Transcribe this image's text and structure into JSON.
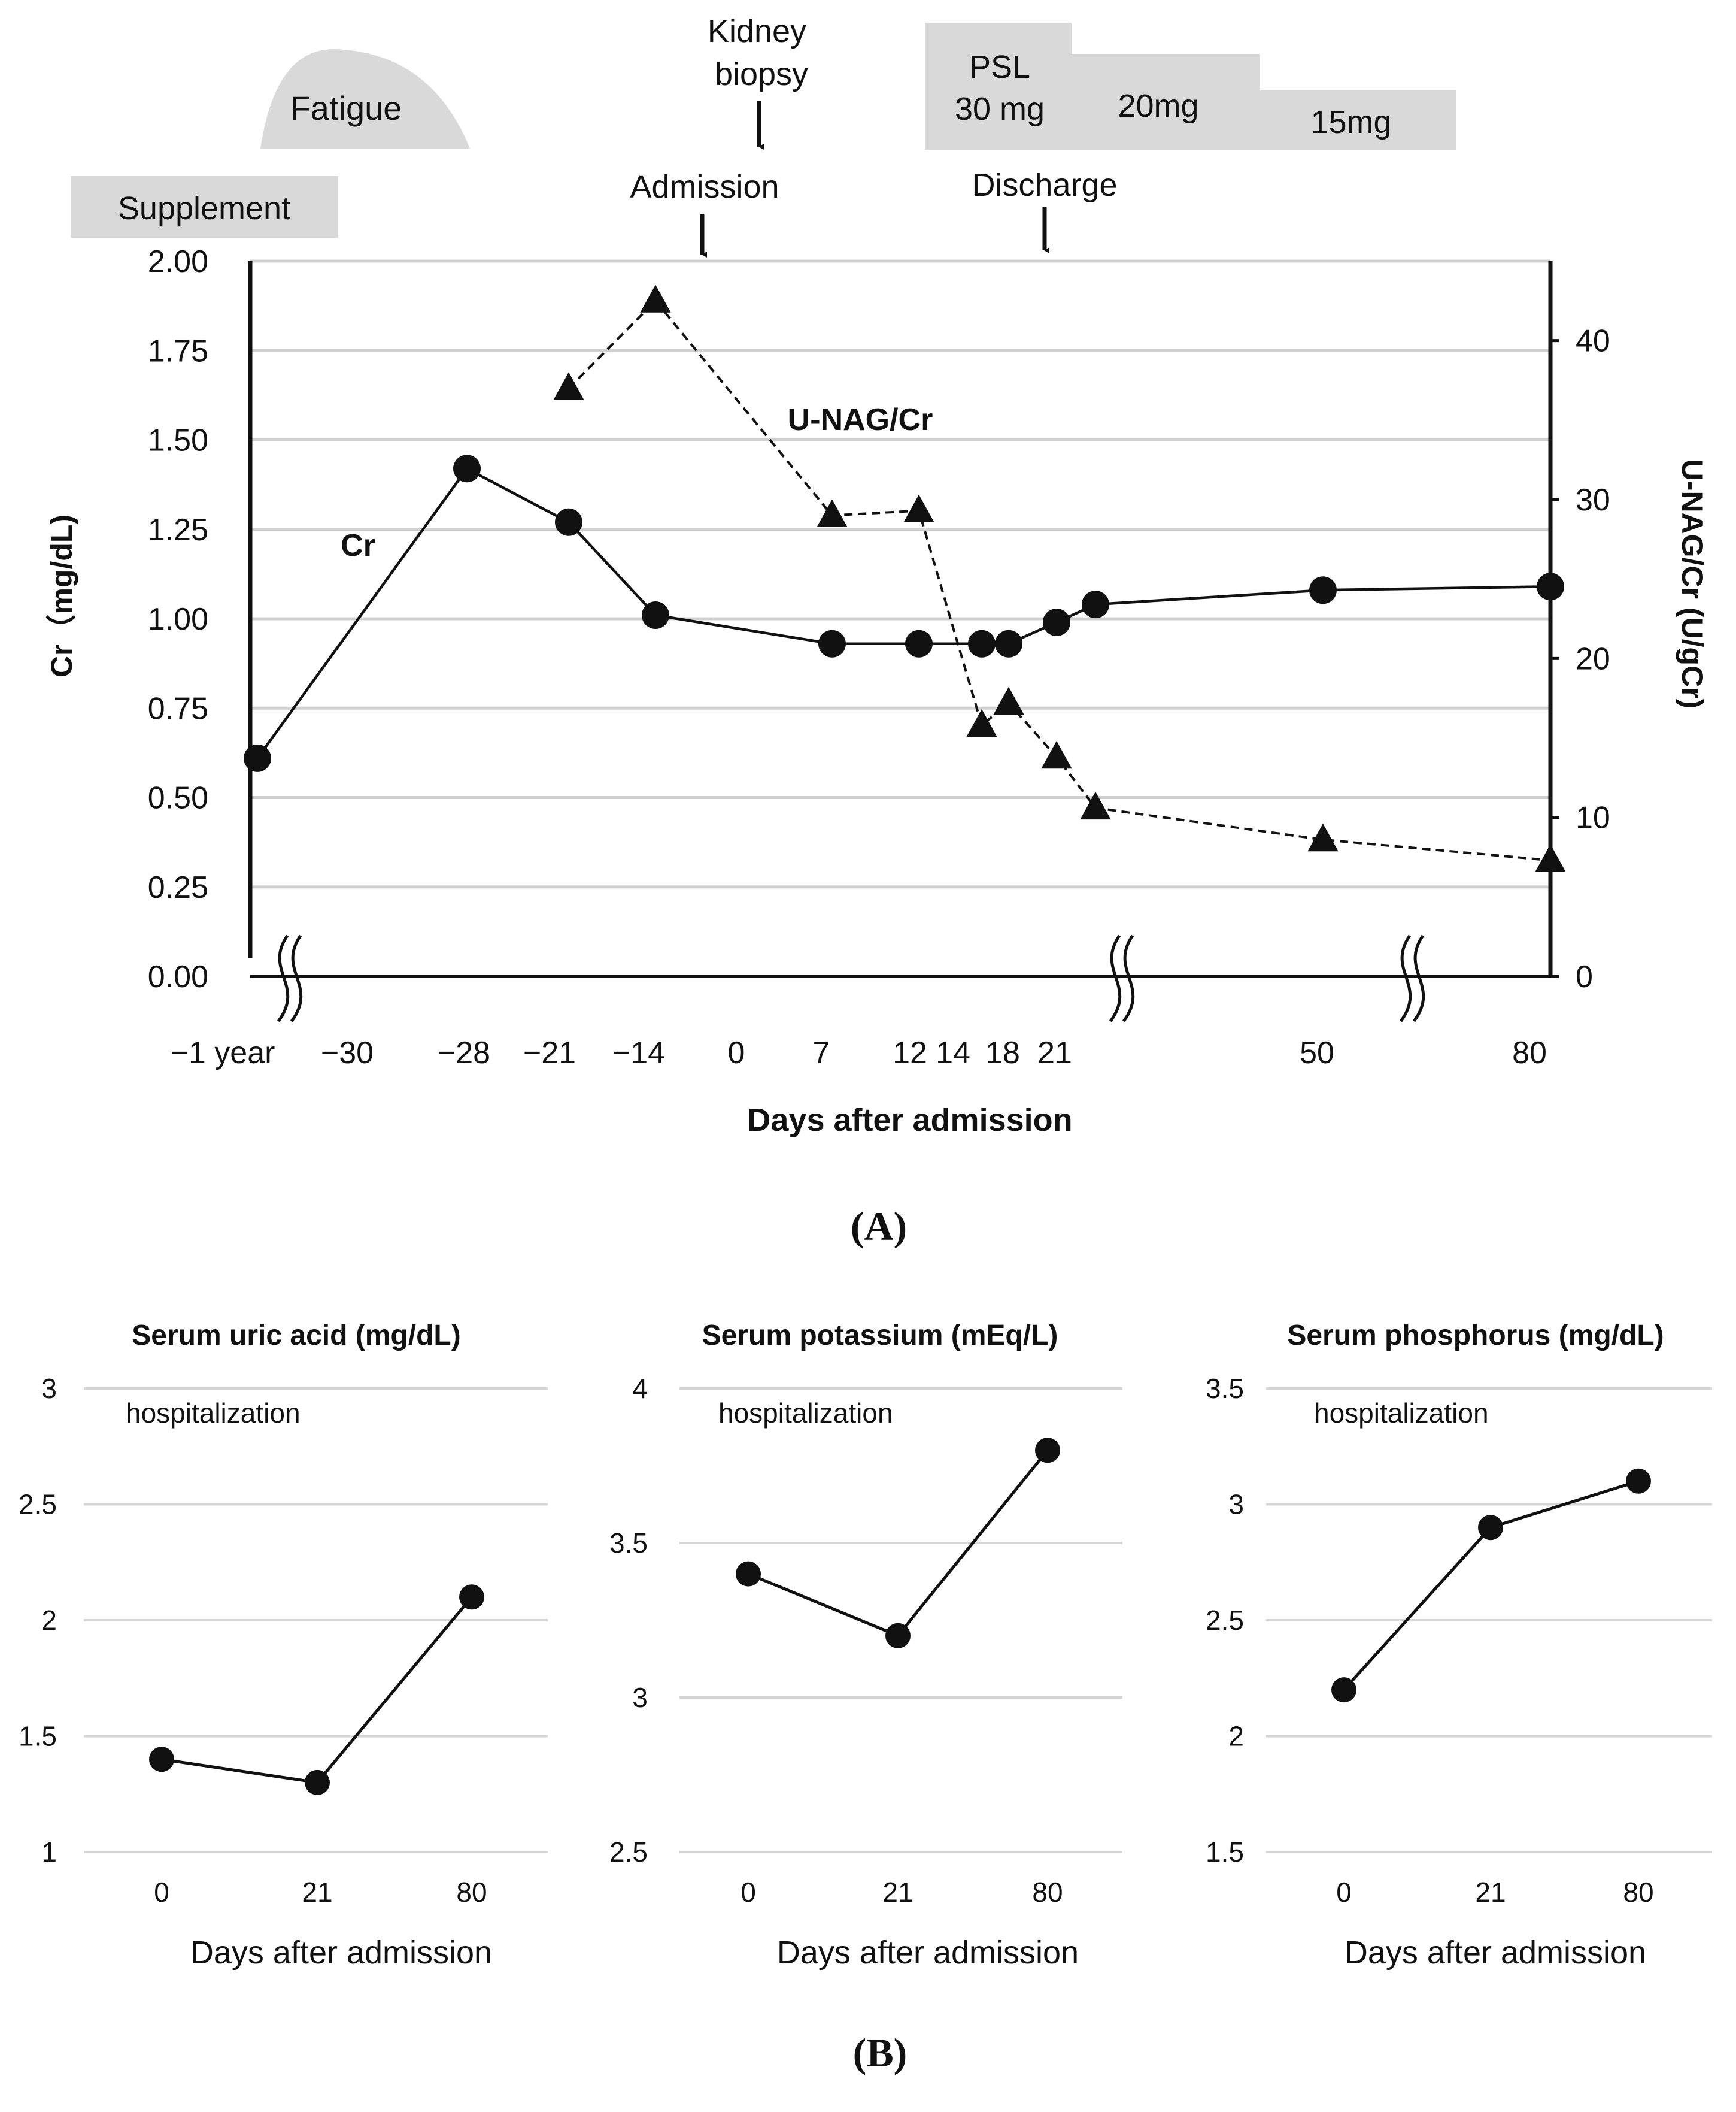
{
  "chart_data": [
    {
      "panel": "(A)",
      "type": "line",
      "xlabel": "Days after admission",
      "x_categories": [
        "−1 year",
        "−30",
        "−28",
        "−21",
        "−14",
        "0",
        "7",
        "12",
        "14",
        "18",
        "21",
        "50",
        "80"
      ],
      "ylabel_left": "Cr（mg/dL)",
      "ylabel_right": "U-NAG/Cr (U/gCr)",
      "ylim_left": [
        0,
        2
      ],
      "ylim_right": [
        0,
        45
      ],
      "yticks_left": [
        "0.00",
        "0.25",
        "0.50",
        "0.75",
        "1.00",
        "1.25",
        "1.50",
        "1.75",
        "2.00"
      ],
      "yticks_right": [
        "0",
        "10",
        "20",
        "30",
        "40"
      ],
      "series": [
        {
          "name": "Cr",
          "marker": "circle",
          "line": "solid",
          "axis": "left",
          "points": [
            {
              "x": -400,
              "y": 0.61
            },
            {
              "x": -28,
              "y": 1.42
            },
            {
              "x": -21,
              "y": 1.27
            },
            {
              "x": -14,
              "y": 1.01
            },
            {
              "x": 7,
              "y": 0.93
            },
            {
              "x": 12,
              "y": 0.93
            },
            {
              "x": 16,
              "y": 0.93
            },
            {
              "x": 18,
              "y": 0.93
            },
            {
              "x": 21,
              "y": 0.99
            },
            {
              "x": 23,
              "y": 1.04
            },
            {
              "x": 50,
              "y": 1.08
            },
            {
              "x": 80,
              "y": 1.09
            }
          ]
        },
        {
          "name": "U-NAG/Cr",
          "marker": "triangle",
          "line": "dashed",
          "axis": "right",
          "points": [
            {
              "x": -21,
              "y": 37
            },
            {
              "x": -14,
              "y": 42.5
            },
            {
              "x": 7,
              "y": 29
            },
            {
              "x": 12,
              "y": 29.3
            },
            {
              "x": 16,
              "y": 15.8
            },
            {
              "x": 18,
              "y": 17.2
            },
            {
              "x": 21,
              "y": 13.8
            },
            {
              "x": 23,
              "y": 10.6
            },
            {
              "x": 50,
              "y": 8.6
            },
            {
              "x": 80,
              "y": 7.3
            }
          ]
        }
      ],
      "series_labels": [
        "Cr",
        "U-NAG/Cr"
      ],
      "annotations": {
        "fatigue": "Fatigue",
        "supplement": "Supplement",
        "kidney_biopsy": "Kidney\nbiopsy",
        "admission": "Admission",
        "discharge": "Discharge",
        "psl": "PSL",
        "psl_30": "30 mg",
        "psl_20": "20mg",
        "psl_15": "15mg"
      }
    },
    {
      "panel": "(B)",
      "type": "line",
      "title": "Serum uric acid (mg/dL)",
      "xlabel": "Days after admission",
      "categories": [
        "0",
        "21",
        "80"
      ],
      "values": [
        1.4,
        1.3,
        2.1
      ],
      "ylim": [
        1,
        3
      ],
      "yticks": [
        "1",
        "1.5",
        "2",
        "2.5",
        "3"
      ],
      "annotation": "hospitalization"
    },
    {
      "panel": "(B)",
      "type": "line",
      "title": "Serum potassium (mEq/L)",
      "xlabel": "Days after admission",
      "categories": [
        "0",
        "21",
        "80"
      ],
      "values": [
        3.4,
        3.2,
        3.8
      ],
      "ylim": [
        2.5,
        4
      ],
      "yticks": [
        "2.5",
        "3",
        "3.5",
        "4"
      ],
      "annotation": "hospitalization"
    },
    {
      "panel": "(B)",
      "type": "line",
      "title": "Serum phosphorus  (mg/dL)",
      "xlabel": "Days after admission",
      "categories": [
        "0",
        "21",
        "80"
      ],
      "values": [
        2.2,
        2.9,
        3.1
      ],
      "ylim": [
        1.5,
        3.5
      ],
      "yticks": [
        "1.5",
        "2",
        "2.5",
        "3",
        "3.5"
      ],
      "annotation": "hospitalization"
    }
  ],
  "labels": {
    "panel_a": "(A)",
    "panel_b": "(B)"
  }
}
